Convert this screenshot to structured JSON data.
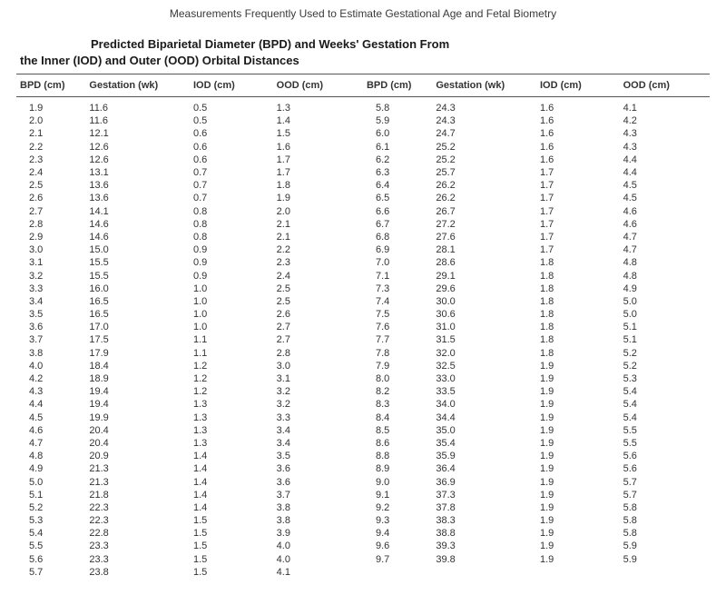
{
  "page": {
    "header": "Measurements Frequently Used to Estimate Gestational Age and Fetal Biometry",
    "title_line1": "Predicted Biparietal Diameter (BPD) and Weeks' Gestation From",
    "title_line2": "the Inner (IOD) and Outer (OOD) Orbital Distances"
  },
  "table": {
    "columns": [
      "BPD (cm)",
      "Gestation (wk)",
      "IOD (cm)",
      "OOD (cm)",
      "BPD (cm)",
      "Gestation (wk)",
      "IOD (cm)",
      "OOD (cm)"
    ],
    "col_align": [
      "left",
      "left",
      "left",
      "left",
      "left",
      "left",
      "left",
      "left"
    ],
    "font_size_pt": 8.5,
    "header_font_size_pt": 9,
    "border_color": "#555555",
    "text_color": "#333333",
    "background_color": "#ffffff",
    "rows": [
      [
        "1.9",
        "11.6",
        "0.5",
        "1.3",
        "5.8",
        "24.3",
        "1.6",
        "4.1"
      ],
      [
        "2.0",
        "11.6",
        "0.5",
        "1.4",
        "5.9",
        "24.3",
        "1.6",
        "4.2"
      ],
      [
        "2.1",
        "12.1",
        "0.6",
        "1.5",
        "6.0",
        "24.7",
        "1.6",
        "4.3"
      ],
      [
        "2.2",
        "12.6",
        "0.6",
        "1.6",
        "6.1",
        "25.2",
        "1.6",
        "4.3"
      ],
      [
        "2.3",
        "12.6",
        "0.6",
        "1.7",
        "6.2",
        "25.2",
        "1.6",
        "4.4"
      ],
      [
        "2.4",
        "13.1",
        "0.7",
        "1.7",
        "6.3",
        "25.7",
        "1.7",
        "4.4"
      ],
      [
        "2.5",
        "13.6",
        "0.7",
        "1.8",
        "6.4",
        "26.2",
        "1.7",
        "4.5"
      ],
      [
        "2.6",
        "13.6",
        "0.7",
        "1.9",
        "6.5",
        "26.2",
        "1.7",
        "4.5"
      ],
      [
        "2.7",
        "14.1",
        "0.8",
        "2.0",
        "6.6",
        "26.7",
        "1.7",
        "4.6"
      ],
      [
        "2.8",
        "14.6",
        "0.8",
        "2.1",
        "6.7",
        "27.2",
        "1.7",
        "4.6"
      ],
      [
        "2.9",
        "14.6",
        "0.8",
        "2.1",
        "6.8",
        "27.6",
        "1.7",
        "4.7"
      ],
      [
        "3.0",
        "15.0",
        "0.9",
        "2.2",
        "6.9",
        "28.1",
        "1.7",
        "4.7"
      ],
      [
        "3.1",
        "15.5",
        "0.9",
        "2.3",
        "7.0",
        "28.6",
        "1.8",
        "4.8"
      ],
      [
        "3.2",
        "15.5",
        "0.9",
        "2.4",
        "7.1",
        "29.1",
        "1.8",
        "4.8"
      ],
      [
        "3.3",
        "16.0",
        "1.0",
        "2.5",
        "7.3",
        "29.6",
        "1.8",
        "4.9"
      ],
      [
        "3.4",
        "16.5",
        "1.0",
        "2.5",
        "7.4",
        "30.0",
        "1.8",
        "5.0"
      ],
      [
        "3.5",
        "16.5",
        "1.0",
        "2.6",
        "7.5",
        "30.6",
        "1.8",
        "5.0"
      ],
      [
        "3.6",
        "17.0",
        "1.0",
        "2.7",
        "7.6",
        "31.0",
        "1.8",
        "5.1"
      ],
      [
        "3.7",
        "17.5",
        "1.1",
        "2.7",
        "7.7",
        "31.5",
        "1.8",
        "5.1"
      ],
      [
        "3.8",
        "17.9",
        "1.1",
        "2.8",
        "7.8",
        "32.0",
        "1.8",
        "5.2"
      ],
      [
        "4.0",
        "18.4",
        "1.2",
        "3.0",
        "7.9",
        "32.5",
        "1.9",
        "5.2"
      ],
      [
        "4.2",
        "18.9",
        "1.2",
        "3.1",
        "8.0",
        "33.0",
        "1.9",
        "5.3"
      ],
      [
        "4.3",
        "19.4",
        "1.2",
        "3.2",
        "8.2",
        "33.5",
        "1.9",
        "5.4"
      ],
      [
        "4.4",
        "19.4",
        "1.3",
        "3.2",
        "8.3",
        "34.0",
        "1.9",
        "5.4"
      ],
      [
        "4.5",
        "19.9",
        "1.3",
        "3.3",
        "8.4",
        "34.4",
        "1.9",
        "5.4"
      ],
      [
        "4.6",
        "20.4",
        "1.3",
        "3.4",
        "8.5",
        "35.0",
        "1.9",
        "5.5"
      ],
      [
        "4.7",
        "20.4",
        "1.3",
        "3.4",
        "8.6",
        "35.4",
        "1.9",
        "5.5"
      ],
      [
        "4.8",
        "20.9",
        "1.4",
        "3.5",
        "8.8",
        "35.9",
        "1.9",
        "5.6"
      ],
      [
        "4.9",
        "21.3",
        "1.4",
        "3.6",
        "8.9",
        "36.4",
        "1.9",
        "5.6"
      ],
      [
        "5.0",
        "21.3",
        "1.4",
        "3.6",
        "9.0",
        "36.9",
        "1.9",
        "5.7"
      ],
      [
        "5.1",
        "21.8",
        "1.4",
        "3.7",
        "9.1",
        "37.3",
        "1.9",
        "5.7"
      ],
      [
        "5.2",
        "22.3",
        "1.4",
        "3.8",
        "9.2",
        "37.8",
        "1.9",
        "5.8"
      ],
      [
        "5.3",
        "22.3",
        "1.5",
        "3.8",
        "9.3",
        "38.3",
        "1.9",
        "5.8"
      ],
      [
        "5.4",
        "22.8",
        "1.5",
        "3.9",
        "9.4",
        "38.8",
        "1.9",
        "5.8"
      ],
      [
        "5.5",
        "23.3",
        "1.5",
        "4.0",
        "9.6",
        "39.3",
        "1.9",
        "5.9"
      ],
      [
        "5.6",
        "23.3",
        "1.5",
        "4.0",
        "9.7",
        "39.8",
        "1.9",
        "5.9"
      ],
      [
        "5.7",
        "23.8",
        "1.5",
        "4.1",
        "",
        "",
        "",
        ""
      ]
    ]
  }
}
